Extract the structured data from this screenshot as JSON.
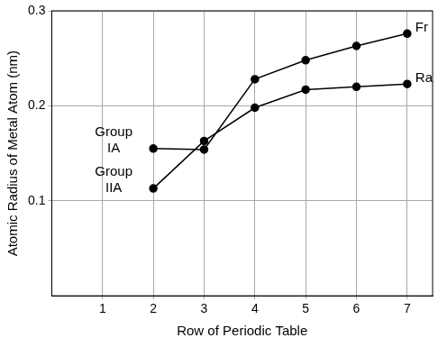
{
  "chart_data": {
    "type": "line",
    "x_label": "Row of Periodic Table",
    "y_label": "Atomic Radius of Metal Atom (nm)",
    "x": [
      2,
      3,
      4,
      5,
      6,
      7
    ],
    "series": [
      {
        "name": "Group IA",
        "color": "#000000",
        "marker": "circle",
        "values": [
          0.155,
          0.154,
          0.228,
          0.248,
          0.263,
          0.276
        ]
      },
      {
        "name": "Group IIA",
        "color": "#000000",
        "marker": "circle",
        "values": [
          0.113,
          0.163,
          0.198,
          0.217,
          0.22,
          0.223
        ]
      }
    ],
    "annotations": [
      {
        "text": "Fr",
        "x": 7,
        "y": 0.276
      },
      {
        "text": "Ra",
        "x": 7,
        "y": 0.223
      }
    ],
    "xlim": [
      0,
      7.5
    ],
    "xticks": [
      1,
      2,
      3,
      4,
      5,
      6,
      7
    ],
    "ylim": [
      0,
      0.3
    ],
    "yticks": [
      0.1,
      0.2,
      0.3
    ],
    "grid": true,
    "legend": "none"
  }
}
